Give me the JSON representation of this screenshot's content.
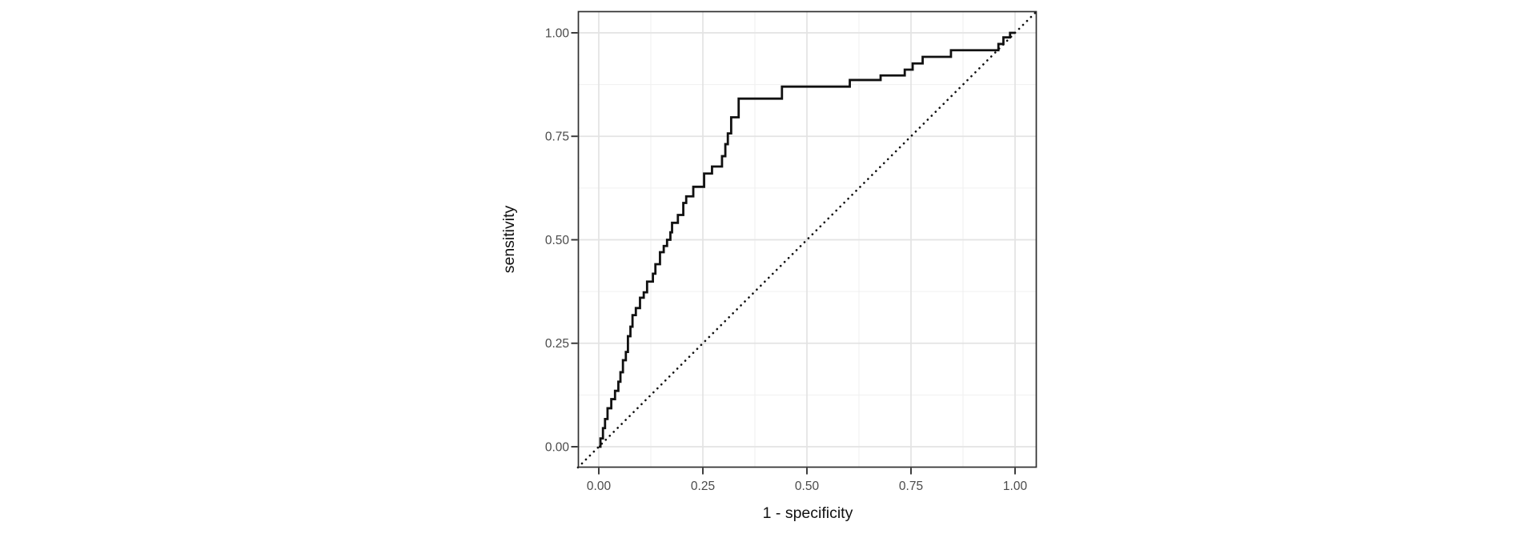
{
  "chart_data": {
    "type": "line",
    "subtype": "roc-step-curve",
    "title": "",
    "xlabel": "1 - specificity",
    "ylabel": "sensitivity",
    "xlim": [
      0,
      1
    ],
    "ylim": [
      0,
      1
    ],
    "grid": "major+minor",
    "legend": "none",
    "x_ticks": {
      "values": [
        0,
        0.25,
        0.5,
        0.75,
        1
      ],
      "labels": [
        "0.00",
        "0.25",
        "0.50",
        "0.75",
        "1.00"
      ]
    },
    "y_ticks": {
      "values": [
        0,
        0.25,
        0.5,
        0.75,
        1
      ],
      "labels": [
        "0.00",
        "0.25",
        "0.50",
        "0.75",
        "1.00"
      ]
    },
    "minor_ticks": [
      0.125,
      0.375,
      0.625,
      0.875
    ],
    "series": [
      {
        "name": "ROC curve",
        "style": "solid-step",
        "color": "#111111",
        "start": [
          0,
          0
        ],
        "end": [
          1,
          1
        ],
        "step_vertices": [
          [
            0.004,
            0.02
          ],
          [
            0.01,
            0.045
          ],
          [
            0.015,
            0.067
          ],
          [
            0.021,
            0.093
          ],
          [
            0.03,
            0.115
          ],
          [
            0.039,
            0.135
          ],
          [
            0.047,
            0.157
          ],
          [
            0.052,
            0.18
          ],
          [
            0.058,
            0.209
          ],
          [
            0.065,
            0.229
          ],
          [
            0.07,
            0.267
          ],
          [
            0.076,
            0.29
          ],
          [
            0.081,
            0.318
          ],
          [
            0.089,
            0.335
          ],
          [
            0.099,
            0.36
          ],
          [
            0.108,
            0.373
          ],
          [
            0.116,
            0.399
          ],
          [
            0.13,
            0.418
          ],
          [
            0.136,
            0.441
          ],
          [
            0.147,
            0.47
          ],
          [
            0.156,
            0.485
          ],
          [
            0.164,
            0.5
          ],
          [
            0.172,
            0.518
          ],
          [
            0.176,
            0.541
          ],
          [
            0.19,
            0.56
          ],
          [
            0.203,
            0.589
          ],
          [
            0.21,
            0.605
          ],
          [
            0.227,
            0.628
          ],
          [
            0.253,
            0.66
          ],
          [
            0.272,
            0.677
          ],
          [
            0.296,
            0.702
          ],
          [
            0.304,
            0.731
          ],
          [
            0.31,
            0.757
          ],
          [
            0.318,
            0.796
          ],
          [
            0.336,
            0.841
          ],
          [
            0.44,
            0.87
          ],
          [
            0.603,
            0.886
          ],
          [
            0.677,
            0.897
          ],
          [
            0.735,
            0.911
          ],
          [
            0.754,
            0.926
          ],
          [
            0.778,
            0.942
          ],
          [
            0.846,
            0.958
          ],
          [
            0.96,
            0.973
          ],
          [
            0.972,
            0.989
          ],
          [
            0.988,
            1.0
          ],
          [
            1.0,
            1.0
          ]
        ]
      },
      {
        "name": "chance reference",
        "style": "dotted",
        "color": "#111111",
        "points": [
          [
            0,
            0
          ],
          [
            1,
            1
          ]
        ],
        "spans_full_panel": true
      }
    ],
    "colors": {
      "background": "#ffffff",
      "panel_background": "#ffffff",
      "grid_major": "#e3e3e3",
      "grid_minor": "#f0f0f0",
      "panel_border": "#2f2f2f",
      "tick_mark": "#333333",
      "tick_label": "#4a4a4a",
      "axis_title": "#111111",
      "curve": "#111111"
    }
  }
}
